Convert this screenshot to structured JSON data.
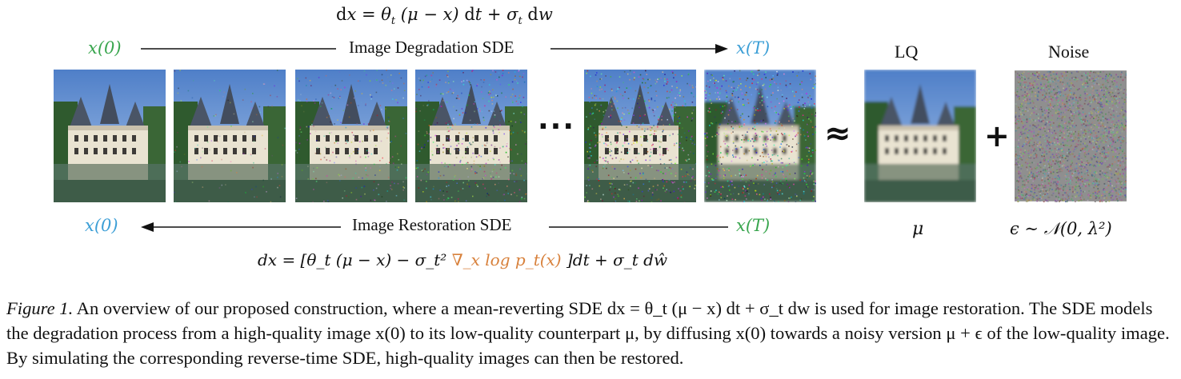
{
  "top_equation": "dx = θ_t (μ − x) dt + σ_t dw",
  "degradation": {
    "start": "x(0)",
    "label": "Image Degradation SDE",
    "end": "x(T)"
  },
  "restoration": {
    "start": "x(0)",
    "label": "Image Restoration SDE",
    "end": "x(T)"
  },
  "bottom_equation": {
    "left": "dx = [θ_t (μ − x) − σ_t² ",
    "score": "∇_x log p_t(x)",
    "right": " ]dt + σ_t dŵ"
  },
  "ellipsis": "···",
  "approx": "≈",
  "plus": "+",
  "lq": {
    "title": "LQ",
    "symbol": "μ"
  },
  "noise": {
    "title": "Noise",
    "symbol": "ϵ ∼ 𝒩(0, λ²)"
  },
  "colors": {
    "green": "#3aa64f",
    "blue": "#3d9fd6",
    "score": "#d8813c",
    "sky": "#6f98d4",
    "water": "#4d6e58"
  },
  "caption": {
    "lead": "Figure 1.",
    "body": " An overview of our proposed construction, where a mean-reverting SDE dx = θ_t (μ − x) dt + σ_t dw is used for image restoration. The SDE models the degradation process from a high-quality image x(0) to its low-quality counterpart μ, by diffusing x(0) towards a noisy version μ + ϵ of the low-quality image. By simulating the corresponding reverse-time SDE, high-quality images can then be restored."
  },
  "tiles": [
    {
      "name": "tile-x0",
      "noise": 0.0,
      "pixelate": false
    },
    {
      "name": "tile-step-1",
      "noise": 0.12,
      "pixelate": false
    },
    {
      "name": "tile-step-2",
      "noise": 0.3,
      "pixelate": false
    },
    {
      "name": "tile-step-3",
      "noise": 0.5,
      "pixelate": false
    },
    {
      "name": "tile-step-4",
      "noise": 0.65,
      "pixelate": false
    },
    {
      "name": "tile-xT",
      "noise": 0.8,
      "pixelate": true
    },
    {
      "name": "tile-lq",
      "noise": 0.0,
      "pixelate": true
    }
  ]
}
